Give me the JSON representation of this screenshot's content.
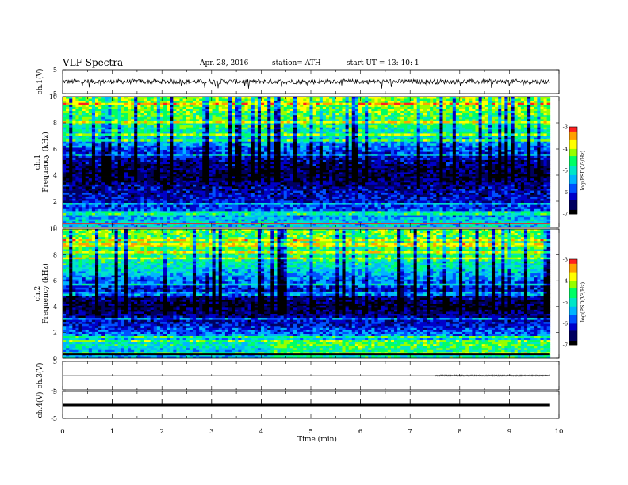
{
  "header": {
    "title": "VLF  Spectra",
    "date": "Apr. 28, 2016",
    "station": "station= ATH",
    "start": "start  UT  =    13: 10: 1"
  },
  "colors": {
    "scale": [
      "#000000",
      "#000060",
      "#0000c8",
      "#0050ff",
      "#00b4ff",
      "#00e6c8",
      "#00ff64",
      "#96ff00",
      "#ffff00",
      "#ffa000",
      "#ff2020",
      "#ffb4b4",
      "#ffffff"
    ],
    "trace": "#000000",
    "axis": "#000000",
    "background": "#ffffff"
  },
  "chart_data": [
    {
      "type": "line",
      "name": "ch1-waveform",
      "ylabel": "ch.1(V)",
      "ylim": [
        -5,
        5
      ],
      "xlim": [
        0,
        10
      ],
      "y_ticks": [
        "5",
        "-5"
      ],
      "description_values": {
        "baseline": 0.0,
        "amplitude_typical": 1.0,
        "spike_extreme": -3.0
      },
      "x_end": 9.82
    },
    {
      "type": "heatmap",
      "name": "ch1-spectrogram",
      "ylabel_line1": "ch.1",
      "ylabel_line2": "Frequency  (kHz)",
      "ylim": [
        0,
        10
      ],
      "xlim": [
        0,
        10
      ],
      "x_end": 9.82,
      "y_ticks": [
        "0",
        "2",
        "4",
        "6",
        "8",
        "10"
      ],
      "colorbar": {
        "label": "log(PSD(V²/Hz)",
        "range": [
          -7,
          -3
        ],
        "ticks": [
          "-3",
          "-4",
          "-5",
          "-6",
          "-7"
        ]
      },
      "profile_kHz": [
        0.5,
        1,
        2,
        3,
        4,
        5,
        6,
        7,
        8,
        9,
        10
      ],
      "profile_logPSD": [
        -5.2,
        -5.6,
        -6.2,
        -6.4,
        -6.8,
        -6.4,
        -5.8,
        -5.0,
        -4.6,
        -4.3,
        -4.1
      ]
    },
    {
      "type": "heatmap",
      "name": "ch2-spectrogram",
      "ylabel_line1": "ch.2",
      "ylabel_line2": "Frequency  (kHz)",
      "ylim": [
        0,
        10
      ],
      "xlim": [
        0,
        10
      ],
      "x_end": 9.82,
      "y_ticks": [
        "0",
        "2",
        "4",
        "6",
        "8",
        "10"
      ],
      "colorbar": {
        "label": "log(PSD(V²/Hz)",
        "range": [
          -7,
          -3
        ],
        "ticks": [
          "-3",
          "-4",
          "-5",
          "-6",
          "-7"
        ]
      },
      "profile_kHz": [
        0.5,
        1,
        2,
        3,
        4,
        5,
        6,
        7,
        8,
        9,
        10
      ],
      "profile_logPSD": [
        -5.4,
        -4.9,
        -5.8,
        -6.4,
        -6.8,
        -6.3,
        -5.7,
        -5.0,
        -4.7,
        -4.5,
        -4.3
      ]
    },
    {
      "type": "line",
      "name": "ch3-waveform",
      "ylabel": "ch.3(V)",
      "ylim": [
        -5,
        5
      ],
      "xlim": [
        0,
        10
      ],
      "x_end": 9.82,
      "y_ticks": [
        "5",
        "-5"
      ],
      "description_values": {
        "baseline": 0.0
      }
    },
    {
      "type": "line",
      "name": "ch4-waveform",
      "ylabel": "ch.4(V)",
      "ylim": [
        -5,
        5
      ],
      "xlim": [
        0,
        10
      ],
      "x_end": 9.82,
      "y_ticks": [
        "5",
        "-5"
      ],
      "description_values": {
        "baseline": 0.0
      }
    }
  ],
  "x_axis": {
    "label": "Time  (min)",
    "ticks": [
      "0",
      "1",
      "2",
      "3",
      "4",
      "5",
      "6",
      "7",
      "8",
      "9",
      "10"
    ]
  }
}
